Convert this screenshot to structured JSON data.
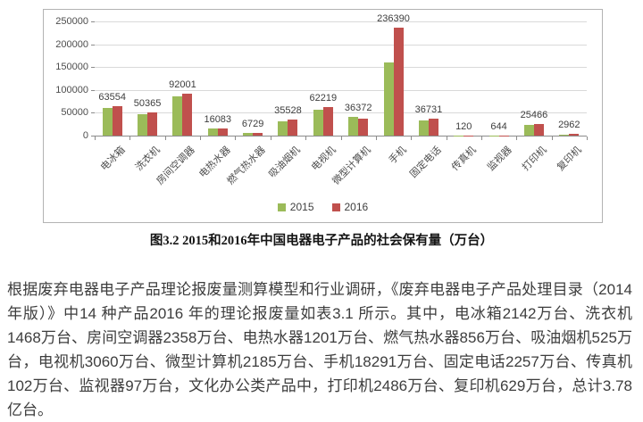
{
  "figure": {
    "caption": "图3.2 2015和2016年中国电器电子产品的社会保有量（万台）"
  },
  "chart_data": {
    "type": "bar",
    "title": "",
    "categories": [
      "电冰箱",
      "洗衣机",
      "房间空调器",
      "电热水器",
      "燃气热水器",
      "吸油烟机",
      "电视机",
      "微型计算机",
      "手机",
      "固定电话",
      "传真机",
      "监视器",
      "打印机",
      "复印机"
    ],
    "series": [
      {
        "name": "2015",
        "color": "#9bbb59",
        "values_estimated": true,
        "values": [
          60000,
          46500,
          86000,
          15000,
          6000,
          31000,
          56000,
          41000,
          160000,
          34000,
          110,
          500,
          24000,
          2500
        ]
      },
      {
        "name": "2016",
        "color": "#c0504d",
        "labels_shown": true,
        "values": [
          63554,
          50365,
          92001,
          16083,
          6729,
          35528,
          62219,
          36372,
          236390,
          36731,
          120,
          644,
          25466,
          2962
        ]
      }
    ],
    "value_labels": [
      63554,
      50365,
      92001,
      16083,
      6729,
      35528,
      62219,
      36372,
      236390,
      36731,
      120,
      644,
      25466,
      2962
    ],
    "xlabel": "",
    "ylabel": "",
    "ylim": [
      0,
      250000
    ],
    "yticks": [
      0,
      50000,
      100000,
      150000,
      200000,
      250000
    ],
    "grid": true,
    "legend_position": "bottom",
    "colors": {
      "grid": "#d9d9d9",
      "axis": "#8c8c8c",
      "label_text": "#3d3d3d"
    }
  },
  "paragraph": {
    "text": "根据废弃电器电子产品理论报废量测算模型和行业调研，《废弃电器电子产品处理目录（2014年版）》中14 种产品2016 年的理论报废量如表3.1 所示。其中，电冰箱2142万台、洗衣机1468万台、房间空调器2358万台、电热水器1201万台、燃气热水器856万台、吸油烟机525万台，电视机3060万台、微型计算机2185万台、手机18291万台、固定电话2257万台、传真机102万台、监视器97万台，文化办公类产品中，打印机2486万台、复印机629万台，总计3.78亿台。"
  }
}
